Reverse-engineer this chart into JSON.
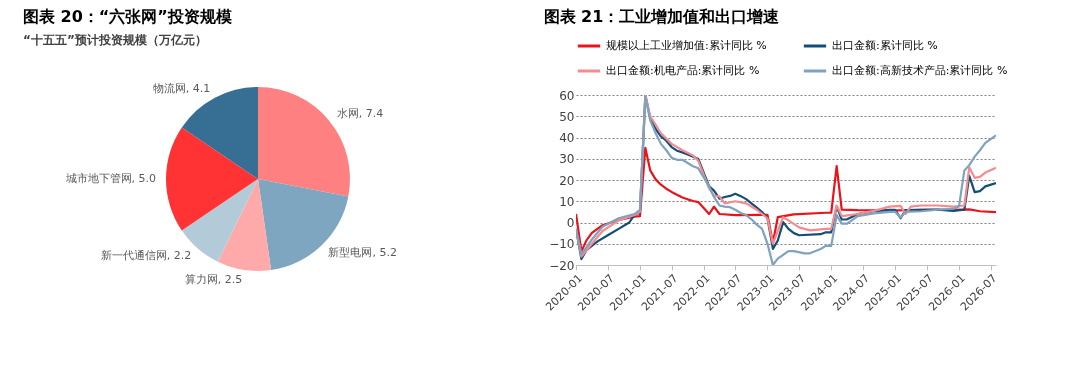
{
  "chart_data": [
    {
      "type": "pie",
      "title": "图表 20：“六张网”投资规模",
      "subtitle": "“十五五”预计投资规模（万亿元）",
      "categories": [
        "水网",
        "新型电网",
        "算力网",
        "新一代通信网",
        "城市地下管网",
        "物流网"
      ],
      "values": [
        7.4,
        5.2,
        2.5,
        2.2,
        5.0,
        4.1
      ],
      "value_labels": [
        "7.4",
        "5.2",
        "2.5",
        "2.2",
        "5.0",
        "4.1"
      ],
      "colors": [
        "#ff8080",
        "#7fa6c0",
        "#ffaaaa",
        "#b3cbd9",
        "#ff3333",
        "#376f94"
      ]
    },
    {
      "type": "line",
      "title": "图表 21：工业增加值和出口增速",
      "legend": "top",
      "grid": "y",
      "xlim": [
        "2020-01",
        "2026-08"
      ],
      "ylim": [
        -20,
        60
      ],
      "yticks": [
        -20,
        -10,
        0,
        10,
        20,
        30,
        40,
        50,
        60
      ],
      "xticks": [
        "2020-01",
        "2020-07",
        "2021-01",
        "2021-07",
        "2022-01",
        "2022-07",
        "2023-01",
        "2023-07",
        "2024-01",
        "2024-07",
        "2025-01",
        "2025-07",
        "2026-01",
        "2026-07"
      ],
      "series": [
        {
          "name": "规模以上工业增加值:累计同比 %",
          "color": "#e8141c",
          "x": [
            "2020-01",
            "2020-02",
            "2020-03",
            "2020-04",
            "2020-06",
            "2020-09",
            "2020-12",
            "2021-01",
            "2021-02",
            "2021-03",
            "2021-04",
            "2021-05",
            "2021-06",
            "2021-07",
            "2021-08",
            "2021-09",
            "2021-10",
            "2021-11",
            "2021-12",
            "2022-02",
            "2022-03",
            "2022-04",
            "2022-07",
            "2022-12",
            "2023-01",
            "2023-02",
            "2023-03",
            "2023-06",
            "2023-12",
            "2024-01",
            "2024-02",
            "2024-03",
            "2024-06",
            "2024-12",
            "2025-06",
            "2025-12",
            "2026-03",
            "2026-05",
            "2026-08"
          ],
          "values": [
            4,
            -13.5,
            -8.4,
            -4.9,
            -1.3,
            1.2,
            2.8,
            3,
            35.1,
            24.5,
            20.3,
            17.8,
            15.9,
            14.4,
            13.1,
            11.8,
            10.9,
            10.1,
            9.6,
            4,
            7.5,
            4,
            3.5,
            3.6,
            3.6,
            -9.5,
            2.5,
            3.8,
            4.6,
            4.6,
            26.5,
            6.1,
            5.8,
            5.6,
            6,
            6,
            6.2,
            5.3,
            4.9
          ]
        },
        {
          "name": "出口金额:累计同比 %",
          "color": "#124e78",
          "x": [
            "2020-01",
            "2020-02",
            "2020-03",
            "2020-05",
            "2020-07",
            "2020-09",
            "2020-11",
            "2020-12",
            "2021-01",
            "2021-02",
            "2021-03",
            "2021-04",
            "2021-05",
            "2021-06",
            "2021-07",
            "2021-08",
            "2021-09",
            "2021-10",
            "2021-11",
            "2021-12",
            "2022-02",
            "2022-03",
            "2022-04",
            "2022-05",
            "2022-06",
            "2022-07",
            "2022-08",
            "2022-09",
            "2022-10",
            "2022-11",
            "2022-12",
            "2023-01",
            "2023-02",
            "2023-03",
            "2023-04",
            "2023-05",
            "2023-06",
            "2023-07",
            "2023-11",
            "2023-12",
            "2024-01",
            "2024-02",
            "2024-03",
            "2024-04",
            "2024-06",
            "2024-09",
            "2024-12",
            "2025-01",
            "2025-02",
            "2025-03",
            "2025-06",
            "2025-09",
            "2025-12",
            "2026-02",
            "2026-03",
            "2026-04",
            "2026-05",
            "2026-06",
            "2026-08"
          ],
          "values": [
            -3,
            -17.2,
            -13,
            -9,
            -6,
            -3,
            0,
            3.6,
            4.6,
            60,
            49,
            44,
            40.5,
            38.5,
            35.5,
            33.8,
            33,
            32,
            31,
            29.9,
            17,
            15,
            11.2,
            12,
            12.5,
            13.5,
            12.4,
            11,
            9,
            7,
            4.9,
            2,
            -12.4,
            -8.5,
            0.2,
            -3,
            -5,
            -6,
            -5.5,
            -4.6,
            -4.6,
            7.6,
            1.4,
            1.5,
            4,
            5.3,
            5.9,
            5.9,
            2,
            5.8,
            5.9,
            6.1,
            5.5,
            6,
            21.9,
            14.3,
            14.8,
            17,
            18.6
          ]
        },
        {
          "name": "出口金额:机电产品:累计同比 %",
          "color": "#f58a8f",
          "x": [
            "2020-01",
            "2020-02",
            "2020-04",
            "2020-06",
            "2020-09",
            "2020-12",
            "2021-01",
            "2021-02",
            "2021-03",
            "2021-04",
            "2021-05",
            "2021-07",
            "2021-09",
            "2021-11",
            "2021-12",
            "2022-02",
            "2022-03",
            "2022-04",
            "2022-05",
            "2022-07",
            "2022-09",
            "2022-11",
            "2022-12",
            "2023-01",
            "2023-02",
            "2023-03",
            "2023-04",
            "2023-05",
            "2023-07",
            "2023-09",
            "2023-12",
            "2024-01",
            "2024-02",
            "2024-03",
            "2024-06",
            "2024-09",
            "2024-12",
            "2025-02",
            "2025-03",
            "2025-04",
            "2025-06",
            "2025-09",
            "2025-12",
            "2026-02",
            "2026-03",
            "2026-04",
            "2026-05",
            "2026-06",
            "2026-08"
          ],
          "values": [
            -3,
            -16,
            -10,
            -4,
            1,
            3.5,
            5,
            60,
            50,
            46,
            42,
            37,
            34,
            31.5,
            29,
            16,
            12.5,
            12.3,
            9,
            10,
            9,
            6,
            4,
            2,
            -10,
            -4,
            2.5,
            1,
            -2.3,
            -3.7,
            -3,
            -3,
            8,
            3,
            4,
            5.5,
            7.5,
            7.8,
            4,
            7.5,
            8,
            8,
            7.5,
            8,
            26,
            21,
            21.5,
            23.5,
            25.8
          ]
        },
        {
          "name": "出口金额:高新技术产品:累计同比 %",
          "color": "#7fa3bf",
          "x": [
            "2020-01",
            "2020-02",
            "2020-04",
            "2020-06",
            "2020-09",
            "2020-12",
            "2021-01",
            "2021-02",
            "2021-03",
            "2021-04",
            "2021-05",
            "2021-06",
            "2021-07",
            "2021-08",
            "2021-09",
            "2021-10",
            "2021-11",
            "2021-12",
            "2022-02",
            "2022-03",
            "2022-04",
            "2022-05",
            "2022-06",
            "2022-07",
            "2022-08",
            "2022-09",
            "2022-10",
            "2022-11",
            "2022-12",
            "2023-01",
            "2023-02",
            "2023-03",
            "2023-05",
            "2023-06",
            "2023-08",
            "2023-09",
            "2023-11",
            "2023-12",
            "2024-01",
            "2024-02",
            "2024-03",
            "2024-04",
            "2024-06",
            "2024-09",
            "2024-12",
            "2025-01",
            "2025-02",
            "2025-03",
            "2025-06",
            "2025-09",
            "2025-12",
            "2026-01",
            "2026-02",
            "2026-03",
            "2026-04",
            "2026-05",
            "2026-06",
            "2026-08"
          ],
          "values": [
            -3,
            -15,
            -8,
            -2,
            2,
            4,
            6,
            59,
            48,
            42,
            37,
            34,
            30.5,
            29.5,
            29.5,
            28,
            26.5,
            25.5,
            17,
            12,
            8,
            7.5,
            7.2,
            6,
            4.5,
            3.5,
            1.5,
            -1,
            -3,
            -10,
            -20,
            -17,
            -13.5,
            -13.5,
            -14.5,
            -14.5,
            -12.5,
            -11,
            -11,
            3.5,
            -0.5,
            -0.5,
            3,
            4.3,
            5,
            5,
            2.3,
            5,
            5.3,
            6,
            6.5,
            7.5,
            24.5,
            27,
            31,
            34,
            37.5,
            41
          ]
        }
      ]
    }
  ]
}
